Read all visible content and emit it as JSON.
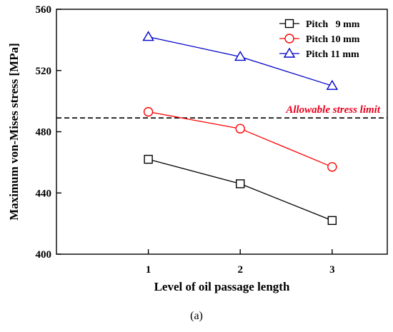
{
  "caption": "(a)",
  "chart_data": {
    "type": "line",
    "xlabel": "Level of oil passage length",
    "ylabel": "Maximum von-Mises stress [MPa]",
    "x": [
      1,
      2,
      3
    ],
    "x_ticks": [
      1,
      2,
      3
    ],
    "xlim": [
      0.0,
      3.6
    ],
    "ylim": [
      400,
      560
    ],
    "y_ticks": [
      400,
      440,
      480,
      520,
      560
    ],
    "grid": false,
    "legend_position": "top-right",
    "series": [
      {
        "name": "Pitch   9 mm",
        "values": [
          462,
          446,
          422
        ],
        "color": "#000000",
        "marker": "square"
      },
      {
        "name": "Pitch 10 mm",
        "values": [
          493,
          482,
          457
        ],
        "color": "#ff0000",
        "marker": "circle"
      },
      {
        "name": "Pitch 11 mm",
        "values": [
          542,
          529,
          510
        ],
        "color": "#0000cc",
        "marker": "triangle"
      }
    ],
    "reference_line": {
      "value": 489,
      "label": "Allowable stress limit",
      "label_color": "#e8001c",
      "line_color": "#000000",
      "style": "dashed"
    }
  }
}
